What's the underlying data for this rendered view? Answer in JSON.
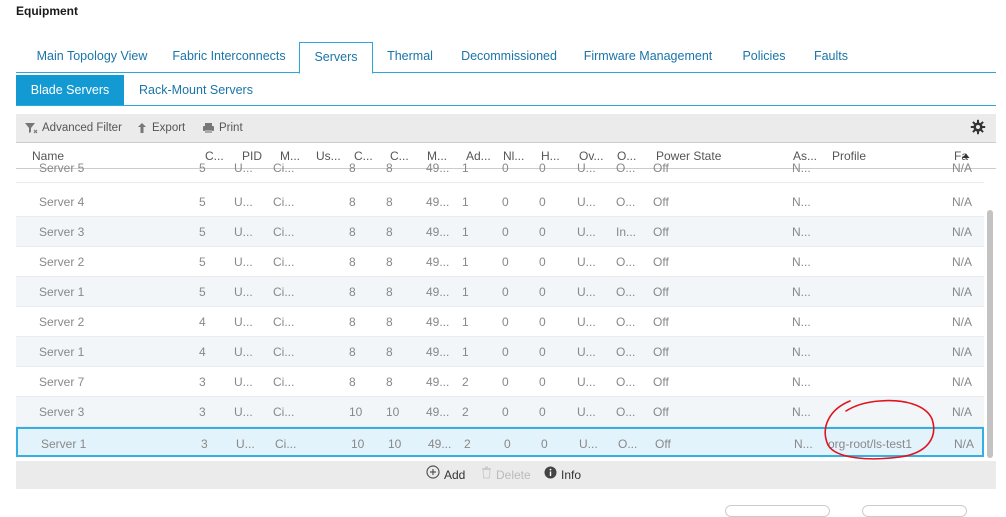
{
  "page": {
    "title": "Equipment"
  },
  "main_tabs": [
    {
      "label": "Main Topology View"
    },
    {
      "label": "Fabric Interconnects"
    },
    {
      "label": "Servers"
    },
    {
      "label": "Thermal"
    },
    {
      "label": "Decommissioned"
    },
    {
      "label": "Firmware Management"
    },
    {
      "label": "Policies"
    },
    {
      "label": "Faults"
    }
  ],
  "sub_tabs": [
    {
      "label": "Blade Servers"
    },
    {
      "label": "Rack-Mount Servers"
    }
  ],
  "toolbar": {
    "filter_label": "Advanced Filter",
    "export_label": "Export",
    "print_label": "Print"
  },
  "columns": [
    "Name",
    "C...",
    "PID",
    "M...",
    "Us...",
    "C...",
    "C...",
    "M...",
    "Ad...",
    "Nl...",
    "H...",
    "Ov...",
    "O...",
    "Power State",
    "As...",
    "Profile",
    "Fa"
  ],
  "partial_row": [
    "Server 5",
    "5",
    "U...",
    "Ci...",
    "",
    "8",
    "8",
    "49...",
    "1",
    "0",
    "0",
    "U...",
    "O...",
    "Off",
    "N...",
    "",
    "N/A"
  ],
  "rows": [
    [
      "Server 4",
      "5",
      "U...",
      "Ci...",
      "",
      "8",
      "8",
      "49...",
      "1",
      "0",
      "0",
      "U...",
      "O...",
      "Off",
      "N...",
      "",
      "N/A"
    ],
    [
      "Server 3",
      "5",
      "U...",
      "Ci...",
      "",
      "8",
      "8",
      "49...",
      "1",
      "0",
      "0",
      "U...",
      "In...",
      "Off",
      "N...",
      "",
      "N/A"
    ],
    [
      "Server 2",
      "5",
      "U...",
      "Ci...",
      "",
      "8",
      "8",
      "49...",
      "1",
      "0",
      "0",
      "U...",
      "O...",
      "Off",
      "N...",
      "",
      "N/A"
    ],
    [
      "Server 1",
      "5",
      "U...",
      "Ci...",
      "",
      "8",
      "8",
      "49...",
      "1",
      "0",
      "0",
      "U...",
      "O...",
      "Off",
      "N...",
      "",
      "N/A"
    ],
    [
      "Server 2",
      "4",
      "U...",
      "Ci...",
      "",
      "8",
      "8",
      "49...",
      "1",
      "0",
      "0",
      "U...",
      "O...",
      "Off",
      "N...",
      "",
      "N/A"
    ],
    [
      "Server 1",
      "4",
      "U...",
      "Ci...",
      "",
      "8",
      "8",
      "49...",
      "1",
      "0",
      "0",
      "U...",
      "O...",
      "Off",
      "N...",
      "",
      "N/A"
    ],
    [
      "Server 7",
      "3",
      "U...",
      "Ci...",
      "",
      "8",
      "8",
      "49...",
      "2",
      "0",
      "0",
      "U...",
      "O...",
      "Off",
      "N...",
      "",
      "N/A"
    ],
    [
      "Server 3",
      "3",
      "U...",
      "Ci...",
      "",
      "10",
      "10",
      "49...",
      "2",
      "0",
      "0",
      "U...",
      "O...",
      "Off",
      "N...",
      "",
      "N/A"
    ],
    [
      "Server 1",
      "3",
      "U...",
      "Ci...",
      "",
      "10",
      "10",
      "49...",
      "2",
      "0",
      "0",
      "U...",
      "O...",
      "Off",
      "N...",
      "org-root/ls-test1",
      "N/A"
    ]
  ],
  "selected_row": 8,
  "footer": {
    "add_label": "Add",
    "delete_label": "Delete",
    "info_label": "Info"
  },
  "colors": {
    "accent": "#139ad3",
    "annotation": "#e0141e"
  },
  "icons": [
    "filter-icon",
    "export-icon",
    "print-icon",
    "gear-icon",
    "add-icon",
    "delete-icon",
    "info-icon",
    "sort-asc-icon"
  ]
}
